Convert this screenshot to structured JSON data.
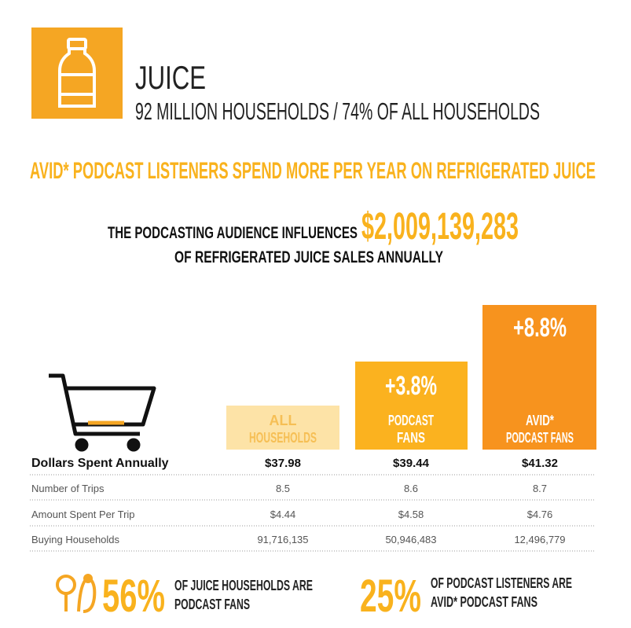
{
  "header": {
    "title": "JUICE",
    "subtitle": "92 MILLION HOUSEHOLDS / 74% OF ALL HOUSEHOLDS"
  },
  "headline": "AVID* PODCAST LISTENERS SPEND MORE PER YEAR ON REFRIGERATED JUICE",
  "influence": {
    "prefix": "THE PODCASTING AUDIENCE INFLUENCES",
    "amount": "$2,009,139,283",
    "suffix": "OF REFRIGERATED JUICE SALES ANNUALLY"
  },
  "columns": [
    {
      "label_lines": [
        "ALL",
        "HOUSEHOLDS"
      ]
    },
    {
      "lift": "+3.8%",
      "label_lines": [
        "PODCAST",
        "FANS"
      ]
    },
    {
      "lift": "+8.8%",
      "label_lines": [
        "AVID*",
        "PODCAST FANS"
      ]
    }
  ],
  "table": {
    "rows": [
      [
        "Dollars Spent Annually",
        "$37.98",
        "$39.44",
        "$41.32"
      ],
      [
        "Number of Trips",
        "8.5",
        "8.6",
        "8.7"
      ],
      [
        "Amount  Spent Per Trip",
        "$4.44",
        "$4.58",
        "$4.76"
      ],
      [
        "Buying Households",
        "91,716,135",
        "50,946,483",
        "12,496,779"
      ]
    ]
  },
  "stats": [
    {
      "value": "56%",
      "text_lines": [
        "OF JUICE HOUSEHOLDS ARE",
        "PODCAST FANS"
      ]
    },
    {
      "value": "25%",
      "text_lines": [
        "OF PODCAST LISTENERS ARE",
        "AVID* PODCAST FANS"
      ]
    }
  ]
}
